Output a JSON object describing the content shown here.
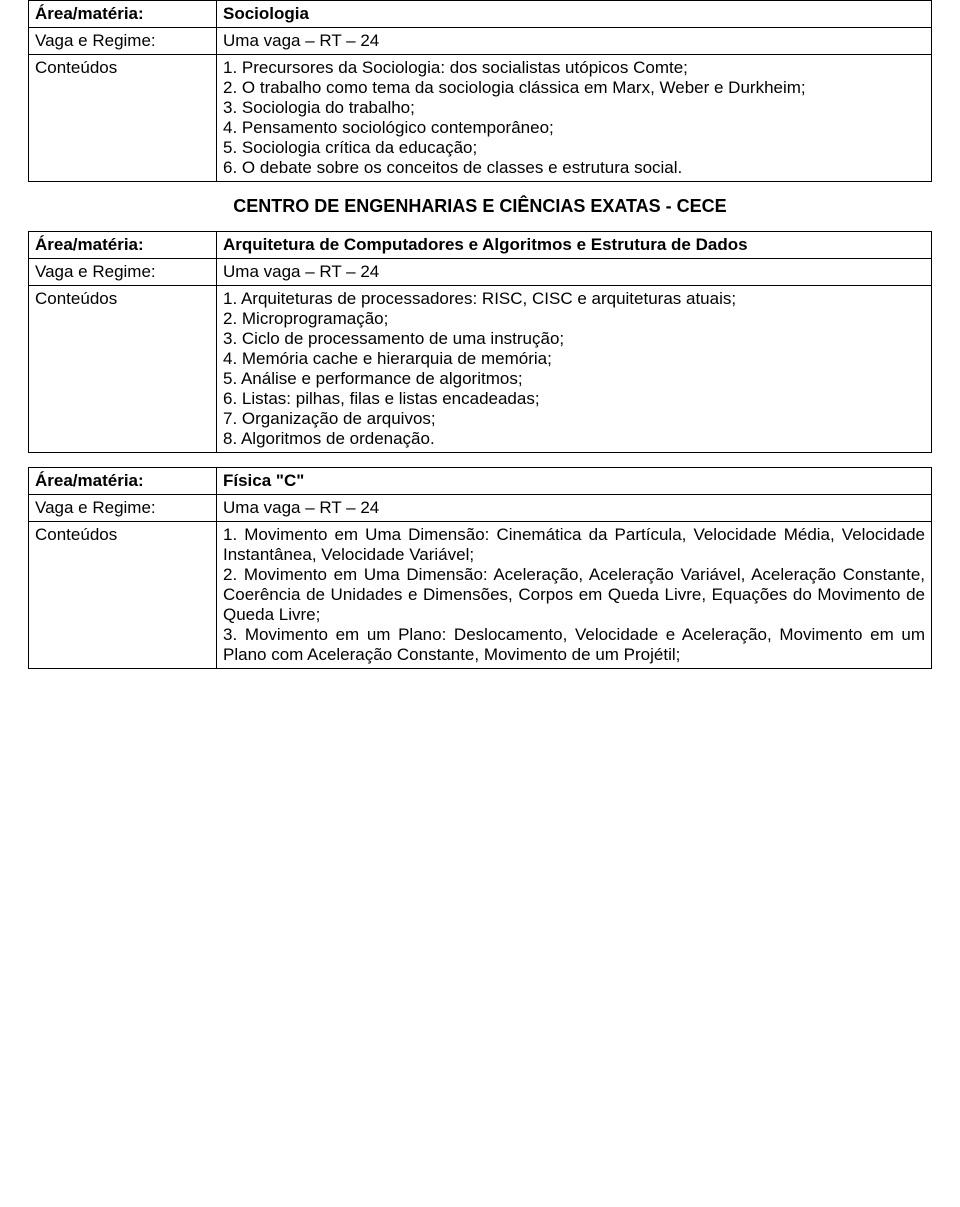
{
  "labels": {
    "area": "Área/matéria:",
    "vaga": "Vaga e Regime:",
    "conteudos": "Conteúdos"
  },
  "table1": {
    "area": "Sociologia",
    "vaga": "Uma vaga – RT – 24",
    "c1": "1. Precursores da Sociologia: dos socialistas utópicos Comte;",
    "c2": "2. O trabalho como tema da sociologia clássica em Marx, Weber e Durkheim;",
    "c3": "3. Sociologia do trabalho;",
    "c4": "4. Pensamento sociológico contemporâneo;",
    "c5": "5. Sociologia crítica da educação;",
    "c6": "6. O debate sobre os conceitos de classes e estrutura social."
  },
  "heading": "CENTRO DE ENGENHARIAS E CIÊNCIAS EXATAS - CECE",
  "table2": {
    "area": "Arquitetura de Computadores e Algoritmos e Estrutura de Dados",
    "vaga": "Uma vaga – RT – 24",
    "c1": "1. Arquiteturas de processadores: RISC, CISC e arquiteturas atuais;",
    "c2": "2. Microprogramação;",
    "c3": "3. Ciclo de processamento de uma instrução;",
    "c4": "4. Memória cache e hierarquia de memória;",
    "c5": "5. Análise e performance de algoritmos;",
    "c6": "6. Listas: pilhas, filas e listas encadeadas;",
    "c7": "7. Organização de arquivos;",
    "c8": "8. Algoritmos de ordenação."
  },
  "table3": {
    "area": "Física \"C\"",
    "vaga": "Uma vaga – RT – 24",
    "c1": "1. Movimento em Uma Dimensão: Cinemática da Partícula, Velocidade Média, Velocidade Instantânea, Velocidade Variável;",
    "c2": "2. Movimento em Uma Dimensão: Aceleração, Aceleração Variável, Aceleração Constante, Coerência de Unidades e Dimensões, Corpos em Queda Livre, Equações do Movimento de Queda Livre;",
    "c3": "3. Movimento em um Plano: Deslocamento, Velocidade e Aceleração, Movimento em um Plano com Aceleração Constante, Movimento de um Projétil;"
  }
}
